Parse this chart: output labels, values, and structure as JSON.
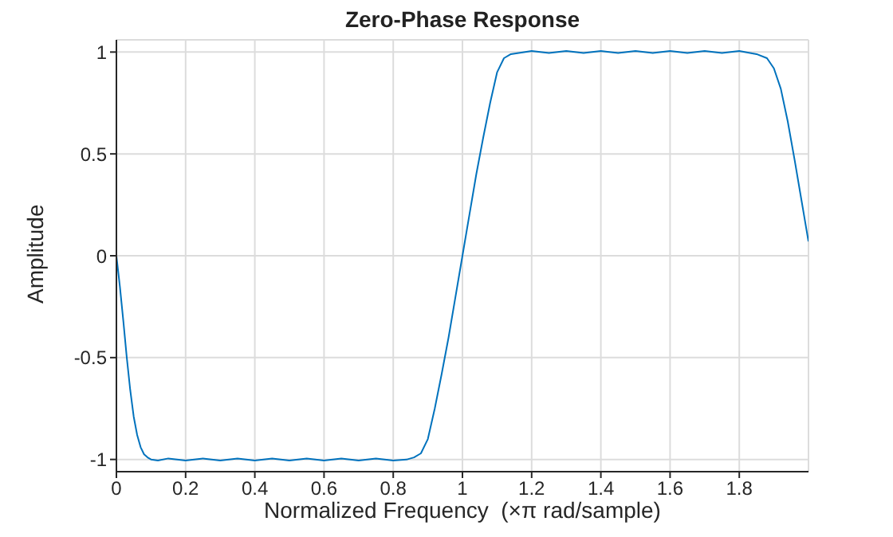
{
  "chart_data": {
    "type": "line",
    "title": "Zero-Phase Response",
    "xlabel": "Normalized Frequency  (×π rad/sample)",
    "ylabel": "Amplitude",
    "x": [
      0,
      0.01,
      0.02,
      0.03,
      0.04,
      0.05,
      0.06,
      0.07,
      0.08,
      0.09,
      0.1,
      0.12,
      0.15,
      0.2,
      0.25,
      0.3,
      0.35,
      0.4,
      0.45,
      0.5,
      0.55,
      0.6,
      0.65,
      0.7,
      0.75,
      0.8,
      0.84,
      0.86,
      0.88,
      0.9,
      0.92,
      0.94,
      0.96,
      0.98,
      1.0,
      1.02,
      1.04,
      1.06,
      1.08,
      1.1,
      1.12,
      1.14,
      1.2,
      1.25,
      1.3,
      1.35,
      1.4,
      1.45,
      1.5,
      1.55,
      1.6,
      1.65,
      1.7,
      1.75,
      1.8,
      1.85,
      1.88,
      1.9,
      1.92,
      1.94,
      1.96,
      1.98,
      2.0
    ],
    "series": [
      {
        "color": "#0072bd",
        "values": [
          0,
          -0.15,
          -0.32,
          -0.5,
          -0.66,
          -0.79,
          -0.88,
          -0.94,
          -0.975,
          -0.99,
          -1.0,
          -1.005,
          -0.995,
          -1.005,
          -0.995,
          -1.005,
          -0.995,
          -1.005,
          -0.995,
          -1.005,
          -0.995,
          -1.005,
          -0.995,
          -1.005,
          -0.995,
          -1.005,
          -1.0,
          -0.99,
          -0.97,
          -0.9,
          -0.75,
          -0.58,
          -0.4,
          -0.2,
          0,
          0.2,
          0.4,
          0.58,
          0.75,
          0.9,
          0.97,
          0.99,
          1.005,
          0.995,
          1.005,
          0.995,
          1.005,
          0.995,
          1.005,
          0.995,
          1.005,
          0.995,
          1.005,
          0.995,
          1.005,
          0.99,
          0.97,
          0.92,
          0.82,
          0.66,
          0.47,
          0.27,
          0.07
        ]
      }
    ],
    "xlim": [
      0,
      2
    ],
    "xticks": [
      0,
      0.2,
      0.4,
      0.6,
      0.8,
      1,
      1.2,
      1.4,
      1.6,
      1.8
    ],
    "ylim": [
      -1.06,
      1.06
    ],
    "yticks": [
      -1,
      -0.5,
      0,
      0.5,
      1
    ],
    "grid": true,
    "line_style": "solid",
    "marker": "none"
  }
}
